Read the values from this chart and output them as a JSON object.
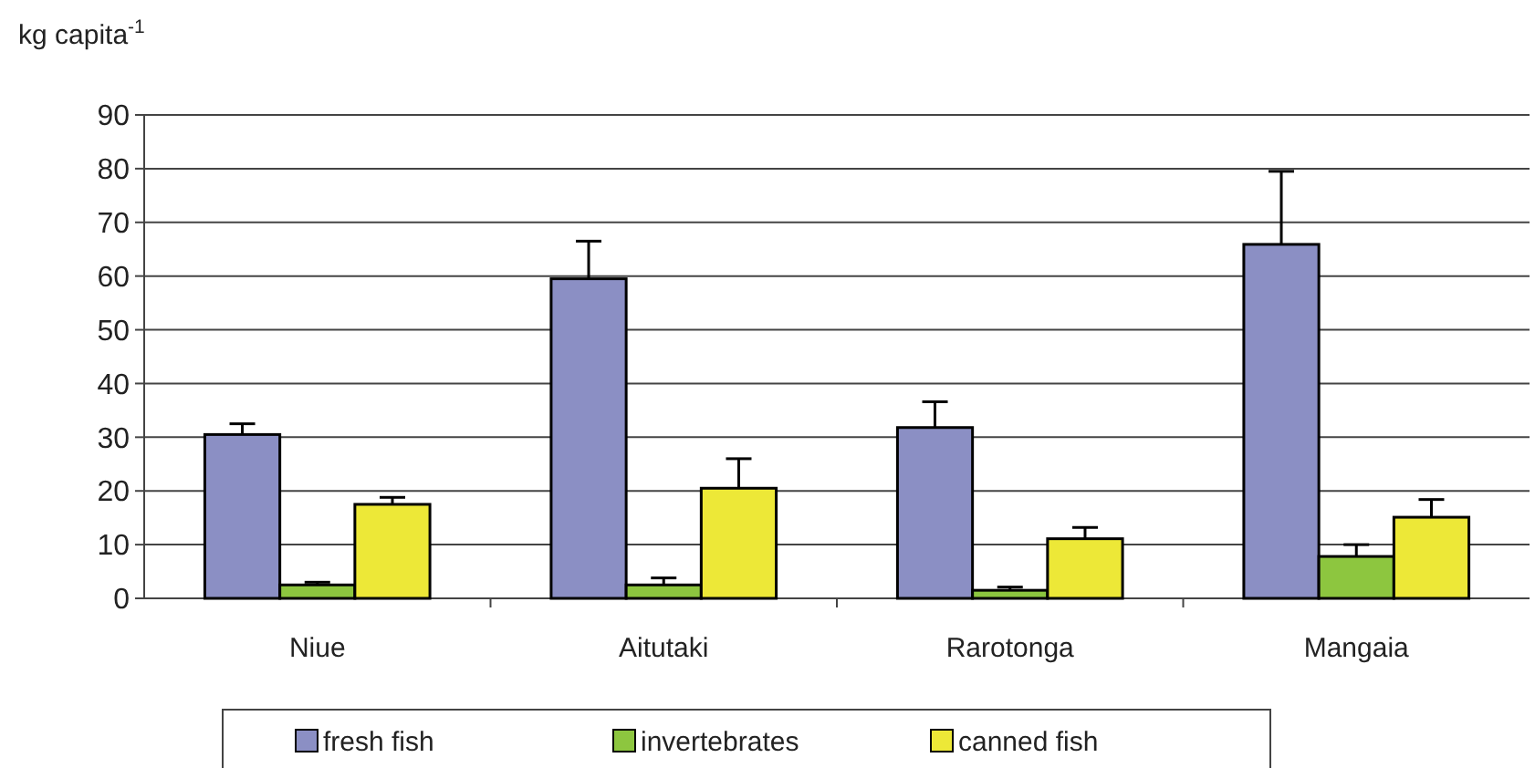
{
  "chart_data": {
    "type": "bar",
    "ylabel": "kg capita$^{-1}$",
    "categories": [
      "Niue",
      "Aitutaki",
      "Rarotonga",
      "Mangaia"
    ],
    "series": [
      {
        "name": "fresh fish",
        "color": "#8b8fc4",
        "values": [
          30.5,
          59.5,
          31.8,
          65.9
        ],
        "errors": [
          [
            30.5,
            32.5
          ],
          [
            59.5,
            66.5
          ],
          [
            31.8,
            36.6
          ],
          [
            65.9,
            79.5
          ]
        ]
      },
      {
        "name": "invertebrates",
        "color": "#8dc63f",
        "values": [
          2.5,
          2.5,
          1.5,
          7.8
        ],
        "errors": [
          [
            2.5,
            3.0
          ],
          [
            2.5,
            3.8
          ],
          [
            1.5,
            2.1
          ],
          [
            7.8,
            10.0
          ]
        ]
      },
      {
        "name": "canned fish",
        "color": "#ede837",
        "values": [
          17.5,
          20.5,
          11.1,
          15.1
        ],
        "errors": [
          [
            17.5,
            18.8
          ],
          [
            20.5,
            26.0
          ],
          [
            11.1,
            13.2
          ],
          [
            15.1,
            18.4
          ]
        ]
      }
    ],
    "ylim": [
      0,
      90
    ],
    "yticks": [
      0,
      10,
      20,
      30,
      40,
      50,
      60,
      70,
      80,
      90
    ],
    "grid": "y",
    "legend": "bottom"
  }
}
